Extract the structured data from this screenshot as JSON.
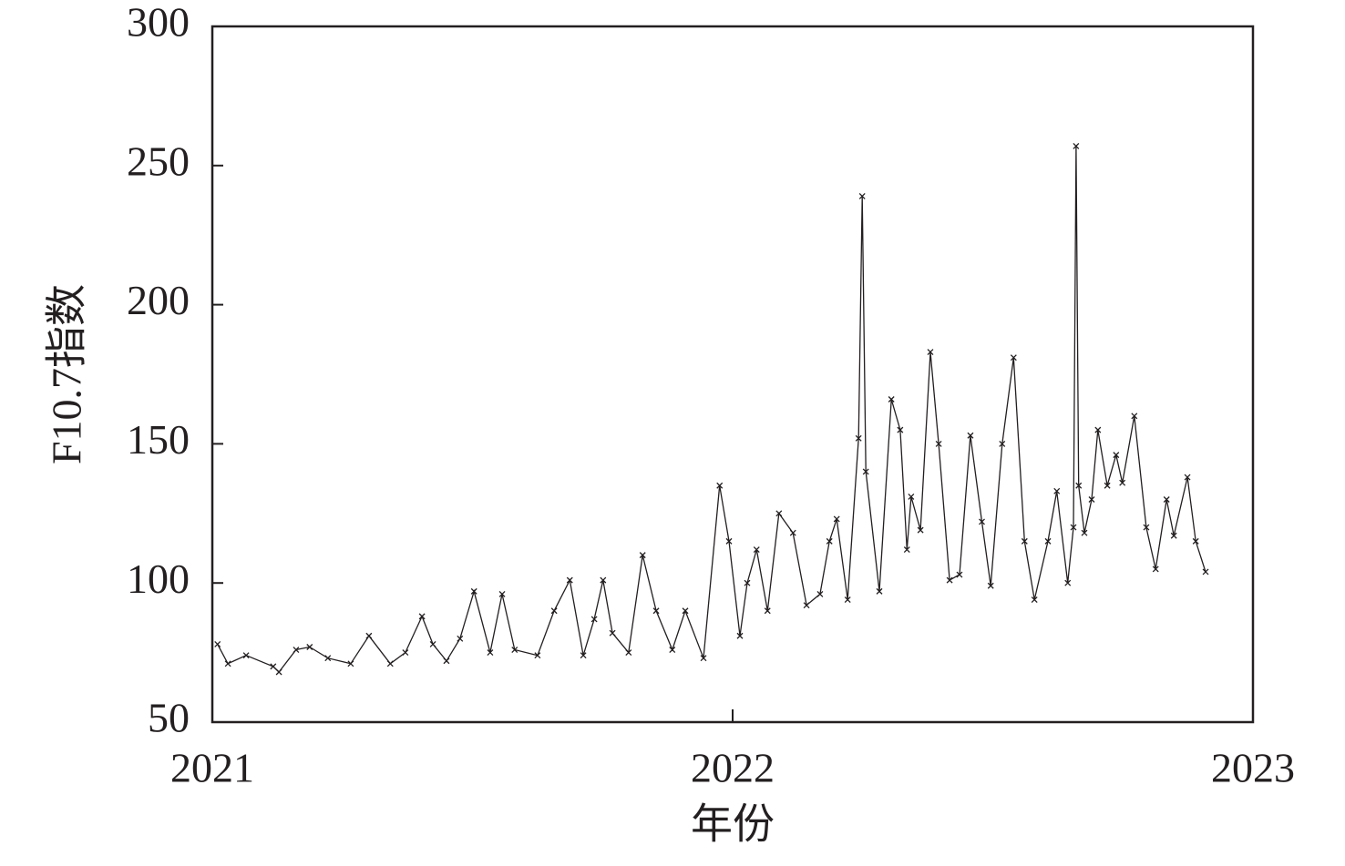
{
  "chart_data": {
    "type": "line",
    "x_label": "年份",
    "y_label": "F10.7指数",
    "x": [
      2021.01,
      2021.03,
      2021.065,
      2021.117,
      2021.128,
      2021.161,
      2021.187,
      2021.222,
      2021.266,
      2021.301,
      2021.342,
      2021.371,
      2021.403,
      2021.424,
      2021.45,
      2021.476,
      2021.503,
      2021.534,
      2021.557,
      2021.581,
      2021.625,
      2021.657,
      2021.687,
      2021.713,
      2021.734,
      2021.751,
      2021.769,
      2021.8,
      2021.827,
      2021.853,
      2021.884,
      2021.909,
      2021.944,
      2021.975,
      2021.993,
      2022.014,
      2022.028,
      2022.046,
      2022.067,
      2022.089,
      2022.116,
      2022.142,
      2022.168,
      2022.186,
      2022.2,
      2022.221,
      2022.242,
      2022.249,
      2022.256,
      2022.282,
      2022.305,
      2022.322,
      2022.335,
      2022.343,
      2022.361,
      2022.38,
      2022.396,
      2022.417,
      2022.436,
      2022.457,
      2022.479,
      2022.496,
      2022.518,
      2022.54,
      2022.561,
      2022.58,
      2022.606,
      2022.623,
      2022.644,
      2022.655,
      2022.66,
      2022.665,
      2022.676,
      2022.69,
      2022.702,
      2022.72,
      2022.737,
      2022.749,
      2022.772,
      2022.795,
      2022.813,
      2022.834,
      2022.848,
      2022.874,
      2022.89,
      2022.909
    ],
    "series": [
      {
        "name": "F10.7",
        "color": "#231f20",
        "values": [
          78,
          71,
          74,
          70,
          68,
          76,
          77,
          73,
          71,
          81,
          71,
          75,
          88,
          78,
          72,
          80,
          97,
          75,
          96,
          76,
          74,
          90,
          101,
          74,
          87,
          101,
          82,
          75,
          110,
          90,
          76,
          90,
          73,
          135,
          115,
          81,
          100,
          112,
          90,
          125,
          118,
          92,
          96,
          115,
          123,
          94,
          152,
          239,
          140,
          97,
          166,
          155,
          112,
          131,
          119,
          183,
          150,
          101,
          103,
          153,
          122,
          99,
          150,
          181,
          115,
          94,
          115,
          133,
          100,
          120,
          257,
          135,
          118,
          130,
          155,
          135,
          146,
          136,
          160,
          120,
          105,
          130,
          117,
          138,
          115,
          104
        ]
      }
    ],
    "xlim": [
      2021,
      2023
    ],
    "xticks": [
      2021,
      2022,
      2023
    ],
    "ylim": [
      50,
      300
    ],
    "yticks": [
      50,
      100,
      150,
      200,
      250,
      300
    ]
  }
}
